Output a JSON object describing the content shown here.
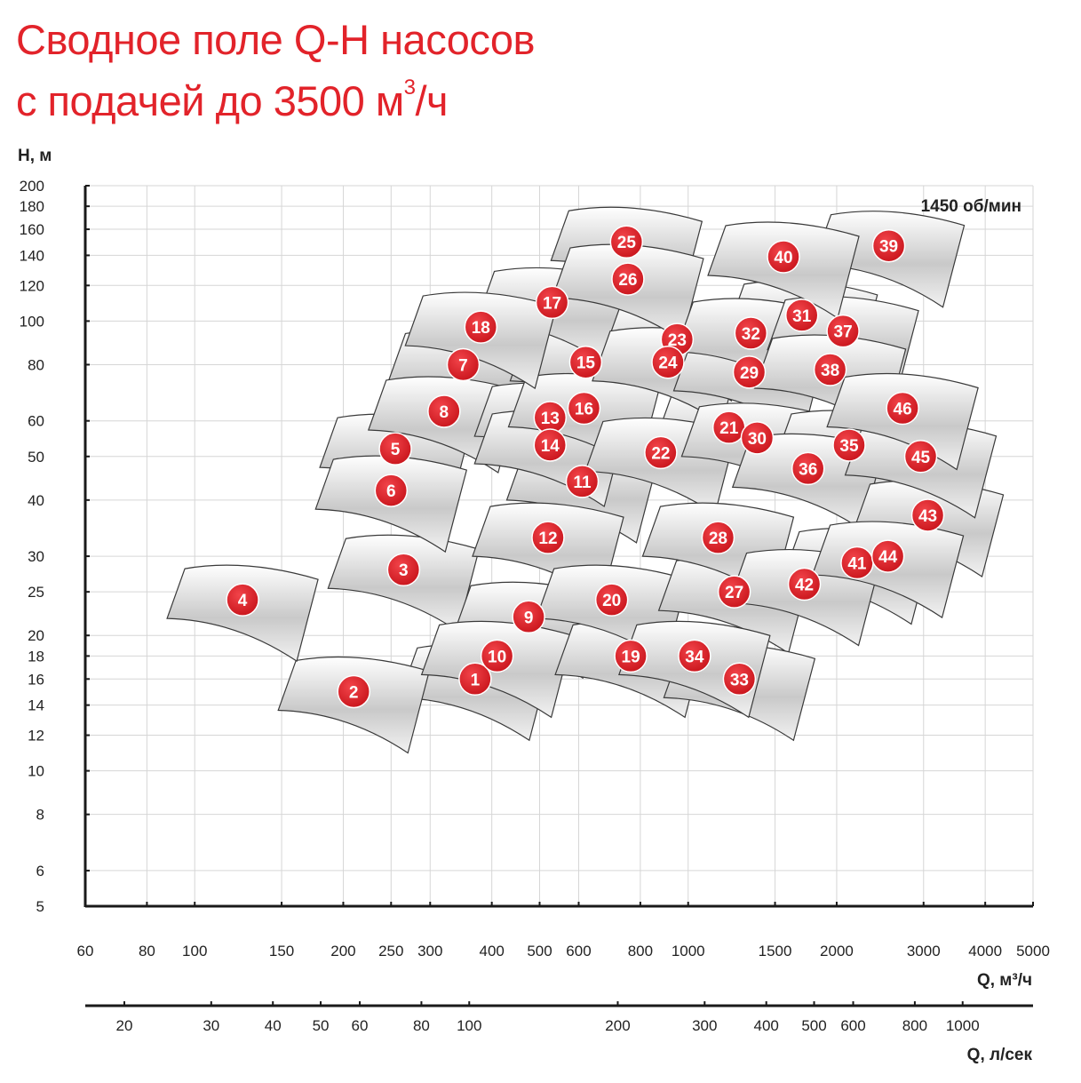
{
  "header": {
    "title_line1": "Сводное поле Q-H насосов",
    "title_line2_prefix": "с подачей до 3500 м",
    "title_line2_sup": "3",
    "title_line2_suffix": "/ч"
  },
  "chart_data": {
    "type": "scatter",
    "title": "Сводное поле Q-H насосов с подачей до 3500 м3/ч",
    "annotation": "1450 об/мин",
    "y_axis": {
      "label": "H, м",
      "scale": "log",
      "range": [
        5,
        200
      ],
      "ticks": [
        5,
        6,
        8,
        10,
        12,
        14,
        16,
        18,
        20,
        25,
        30,
        40,
        50,
        60,
        80,
        100,
        120,
        140,
        160,
        180,
        200
      ]
    },
    "x_axis": {
      "label": "Q, м³/ч",
      "scale": "log",
      "range": [
        60,
        5000
      ],
      "ticks": [
        60,
        80,
        100,
        150,
        200,
        250,
        300,
        400,
        500,
        600,
        800,
        1000,
        1500,
        2000,
        3000,
        4000,
        5000
      ]
    },
    "x_axis_secondary": {
      "label": "Q, л/сек",
      "scale": "log",
      "ticks": [
        20,
        30,
        40,
        50,
        60,
        80,
        100,
        200,
        300,
        400,
        500,
        600,
        800,
        1000
      ]
    },
    "grid": true,
    "pumps": [
      {
        "id": "1",
        "q": 370,
        "h": 16
      },
      {
        "id": "2",
        "q": 210,
        "h": 15
      },
      {
        "id": "3",
        "q": 265,
        "h": 28
      },
      {
        "id": "4",
        "q": 125,
        "h": 24
      },
      {
        "id": "5",
        "q": 255,
        "h": 52
      },
      {
        "id": "6",
        "q": 250,
        "h": 42
      },
      {
        "id": "7",
        "q": 350,
        "h": 80
      },
      {
        "id": "8",
        "q": 320,
        "h": 63
      },
      {
        "id": "9",
        "q": 475,
        "h": 22
      },
      {
        "id": "10",
        "q": 410,
        "h": 18
      },
      {
        "id": "11",
        "q": 610,
        "h": 44
      },
      {
        "id": "12",
        "q": 520,
        "h": 33
      },
      {
        "id": "13",
        "q": 525,
        "h": 61
      },
      {
        "id": "14",
        "q": 525,
        "h": 53
      },
      {
        "id": "15",
        "q": 620,
        "h": 81
      },
      {
        "id": "16",
        "q": 615,
        "h": 64
      },
      {
        "id": "17",
        "q": 530,
        "h": 110
      },
      {
        "id": "18",
        "q": 380,
        "h": 97
      },
      {
        "id": "19",
        "q": 765,
        "h": 18
      },
      {
        "id": "20",
        "q": 700,
        "h": 24
      },
      {
        "id": "21",
        "q": 1210,
        "h": 58
      },
      {
        "id": "22",
        "q": 880,
        "h": 51
      },
      {
        "id": "23",
        "q": 950,
        "h": 91
      },
      {
        "id": "24",
        "q": 910,
        "h": 81
      },
      {
        "id": "25",
        "q": 750,
        "h": 150
      },
      {
        "id": "26",
        "q": 755,
        "h": 124
      },
      {
        "id": "27",
        "q": 1240,
        "h": 25
      },
      {
        "id": "28",
        "q": 1150,
        "h": 33
      },
      {
        "id": "29",
        "q": 1330,
        "h": 77
      },
      {
        "id": "30",
        "q": 1380,
        "h": 55
      },
      {
        "id": "31",
        "q": 1700,
        "h": 103
      },
      {
        "id": "32",
        "q": 1340,
        "h": 94
      },
      {
        "id": "33",
        "q": 1270,
        "h": 16
      },
      {
        "id": "34",
        "q": 1030,
        "h": 18
      },
      {
        "id": "35",
        "q": 2120,
        "h": 53
      },
      {
        "id": "36",
        "q": 1750,
        "h": 47
      },
      {
        "id": "37",
        "q": 2060,
        "h": 95
      },
      {
        "id": "38",
        "q": 1940,
        "h": 78
      },
      {
        "id": "39",
        "q": 2550,
        "h": 147
      },
      {
        "id": "40",
        "q": 1560,
        "h": 139
      },
      {
        "id": "41",
        "q": 2200,
        "h": 29
      },
      {
        "id": "42",
        "q": 1720,
        "h": 26
      },
      {
        "id": "43",
        "q": 3060,
        "h": 37
      },
      {
        "id": "44",
        "q": 2540,
        "h": 30
      },
      {
        "id": "45",
        "q": 2960,
        "h": 50
      },
      {
        "id": "46",
        "q": 2720,
        "h": 64
      }
    ]
  }
}
